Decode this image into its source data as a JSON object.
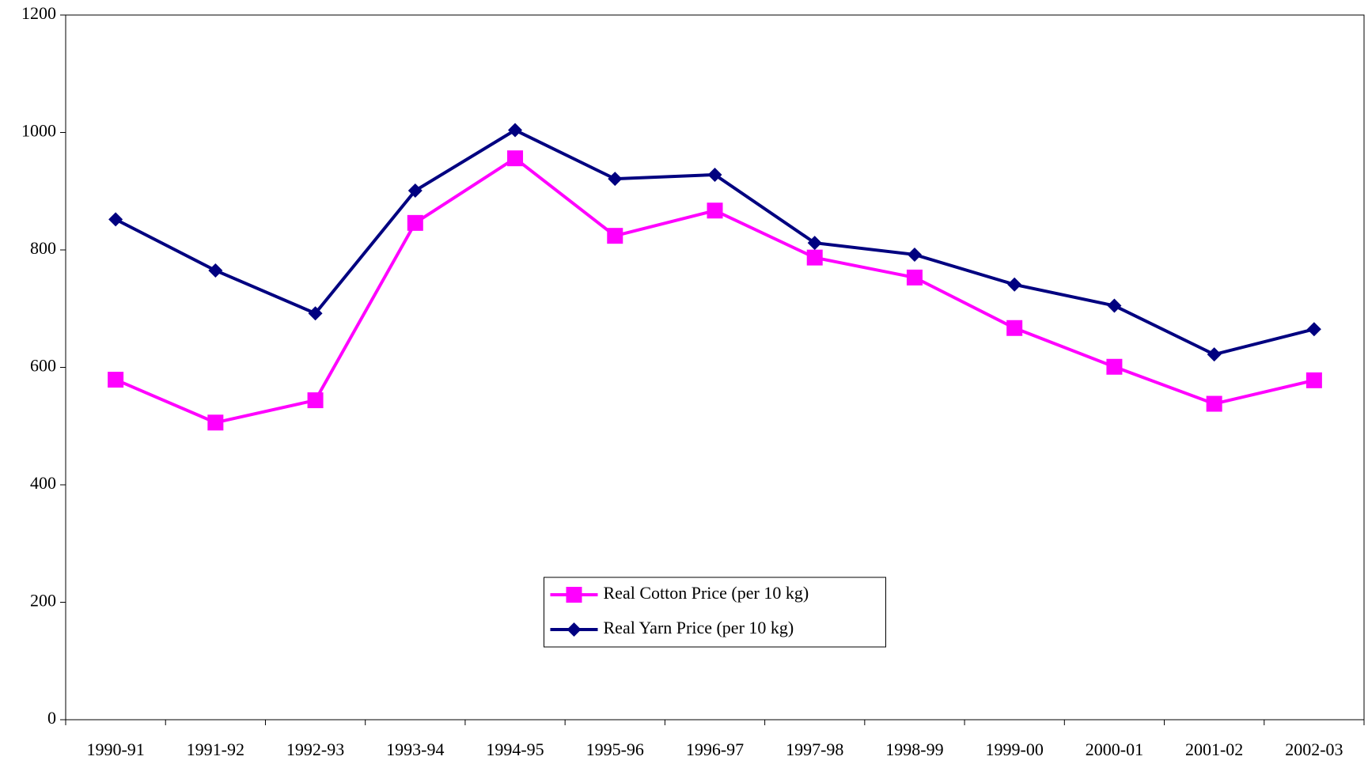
{
  "chart_data": {
    "type": "line",
    "categories": [
      "1990-91",
      "1991-92",
      "1992-93",
      "1993-94",
      "1994-95",
      "1995-96",
      "1996-97",
      "1997-98",
      "1998-99",
      "1999-00",
      "2000-01",
      "2001-02",
      "2002-03"
    ],
    "series": [
      {
        "name": "Real Cotton Price (per 10 kg)",
        "color": "#ff00ff",
        "marker": "square",
        "values": [
          579,
          506,
          544,
          846,
          956,
          824,
          867,
          787,
          753,
          667,
          601,
          538,
          578
        ]
      },
      {
        "name": "Real Yarn Price (per 10 kg)",
        "color": "#000080",
        "marker": "diamond",
        "values": [
          852,
          765,
          692,
          901,
          1004,
          921,
          928,
          812,
          792,
          741,
          705,
          622,
          665
        ]
      }
    ],
    "ylim": [
      0,
      1200
    ],
    "yticks": [
      0,
      200,
      400,
      600,
      800,
      1000,
      1200
    ],
    "grid": false,
    "legend": "bottom-center"
  }
}
